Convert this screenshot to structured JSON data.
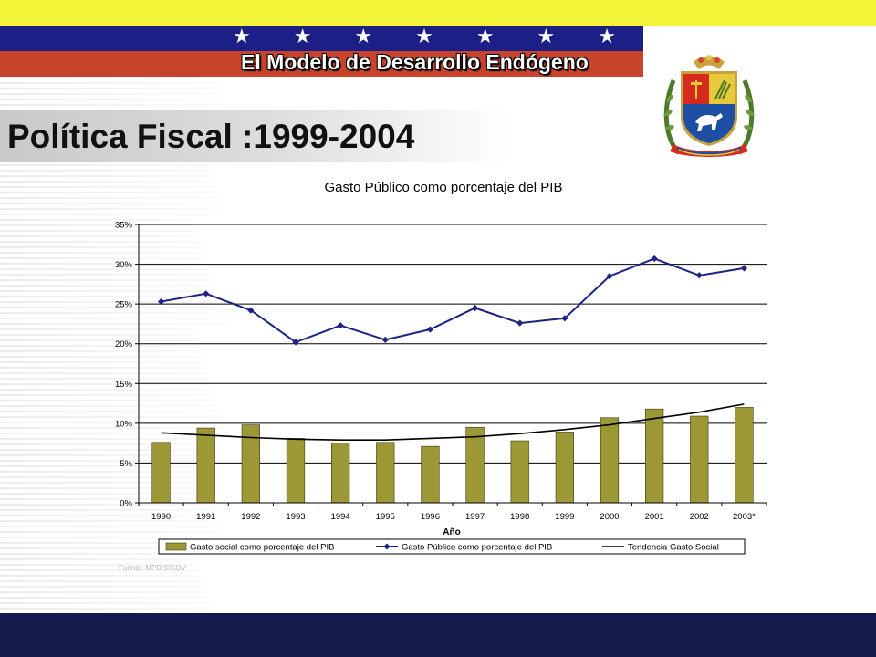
{
  "header": {
    "title": "El Modelo de Desarrollo Endógeno",
    "stars": [
      "★",
      "★",
      "★",
      "★",
      "★",
      "★",
      "★"
    ],
    "colors": {
      "yellow": "#f3f338",
      "blue": "#1c1f86",
      "red": "#c7432b",
      "footer": "#151a4d"
    }
  },
  "slide": {
    "title": "Política Fiscal :1999-2004"
  },
  "emblem": {
    "icon": "venezuela-coat-of-arms-icon"
  },
  "chart_data": {
    "type": "bar",
    "title": "Gasto Público como porcentaje del PIB",
    "xlabel": "Año",
    "ylabel": "",
    "categories": [
      "1990",
      "1991",
      "1992",
      "1993",
      "1994",
      "1995",
      "1996",
      "1997",
      "1998",
      "1999",
      "2000",
      "2001",
      "2002",
      "2003*"
    ],
    "ylim": [
      0,
      35
    ],
    "yticks": [
      "0%",
      "5%",
      "10%",
      "15%",
      "20%",
      "25%",
      "30%",
      "35%"
    ],
    "ytick_values": [
      0,
      5,
      10,
      15,
      20,
      25,
      30,
      35
    ],
    "grid": true,
    "legend_position": "bottom",
    "series": [
      {
        "name": "Gasto social como porcentaje del PIB",
        "kind": "bar",
        "color": "#9c9836",
        "values": [
          7.6,
          9.4,
          9.8,
          8.1,
          7.5,
          7.6,
          7.1,
          9.5,
          7.8,
          8.9,
          10.7,
          11.8,
          10.9,
          12.0
        ]
      },
      {
        "name": "Gasto Público como porcentaje del PIB",
        "kind": "line",
        "color": "#1c2383",
        "values": [
          25.3,
          26.3,
          24.2,
          20.2,
          22.3,
          20.5,
          21.8,
          24.5,
          22.6,
          23.2,
          28.5,
          30.7,
          28.6,
          29.5
        ]
      },
      {
        "name": "Tendencia Gasto Social",
        "kind": "trend",
        "color": "#000000",
        "values": [
          8.8,
          8.5,
          8.2,
          8.0,
          7.9,
          7.9,
          8.1,
          8.3,
          8.7,
          9.2,
          9.8,
          10.6,
          11.4,
          12.4
        ]
      }
    ],
    "source_note": "Fuente: MPD SISOV"
  }
}
